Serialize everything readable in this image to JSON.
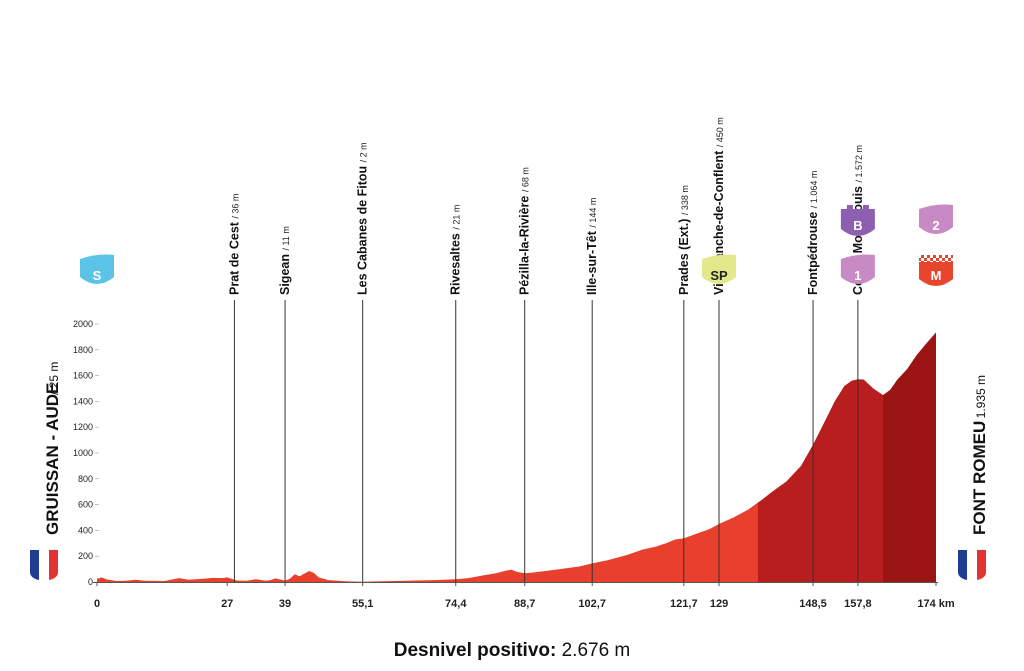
{
  "chart_data": {
    "type": "area",
    "xlim": [
      0,
      174
    ],
    "ylim": [
      0,
      2000
    ],
    "yticks": [
      0,
      200,
      400,
      600,
      800,
      1000,
      1200,
      1400,
      1600,
      1800,
      2000
    ],
    "km_unit": "km",
    "start": {
      "name": "GRUISSAN - AUDE",
      "altitude": "/ 25 m",
      "badge": "S"
    },
    "finish": {
      "name": "FONT ROMEU",
      "altitude": "/ 1.935 m"
    },
    "profile": [
      {
        "x": 0,
        "y": 25
      },
      {
        "x": 1,
        "y": 35
      },
      {
        "x": 2,
        "y": 20
      },
      {
        "x": 4,
        "y": 8
      },
      {
        "x": 6,
        "y": 10
      },
      {
        "x": 8,
        "y": 18
      },
      {
        "x": 10,
        "y": 10
      },
      {
        "x": 14,
        "y": 8
      },
      {
        "x": 17,
        "y": 30
      },
      {
        "x": 19,
        "y": 18
      },
      {
        "x": 22,
        "y": 25
      },
      {
        "x": 24,
        "y": 32
      },
      {
        "x": 26,
        "y": 30
      },
      {
        "x": 27,
        "y": 36
      },
      {
        "x": 29,
        "y": 12
      },
      {
        "x": 31,
        "y": 10
      },
      {
        "x": 33,
        "y": 22
      },
      {
        "x": 35,
        "y": 10
      },
      {
        "x": 36,
        "y": 15
      },
      {
        "x": 37,
        "y": 28
      },
      {
        "x": 39,
        "y": 11
      },
      {
        "x": 40,
        "y": 25
      },
      {
        "x": 41,
        "y": 60
      },
      {
        "x": 42,
        "y": 45
      },
      {
        "x": 44,
        "y": 85
      },
      {
        "x": 45,
        "y": 70
      },
      {
        "x": 46,
        "y": 35
      },
      {
        "x": 48,
        "y": 15
      },
      {
        "x": 50,
        "y": 10
      },
      {
        "x": 52,
        "y": 5
      },
      {
        "x": 55.1,
        "y": 2
      },
      {
        "x": 58,
        "y": 5
      },
      {
        "x": 62,
        "y": 8
      },
      {
        "x": 66,
        "y": 12
      },
      {
        "x": 70,
        "y": 15
      },
      {
        "x": 72,
        "y": 18
      },
      {
        "x": 74.4,
        "y": 21
      },
      {
        "x": 77,
        "y": 30
      },
      {
        "x": 80,
        "y": 50
      },
      {
        "x": 83,
        "y": 70
      },
      {
        "x": 85,
        "y": 90
      },
      {
        "x": 86,
        "y": 95
      },
      {
        "x": 87,
        "y": 80
      },
      {
        "x": 88.7,
        "y": 68
      },
      {
        "x": 90,
        "y": 72
      },
      {
        "x": 93,
        "y": 85
      },
      {
        "x": 96,
        "y": 100
      },
      {
        "x": 100,
        "y": 120
      },
      {
        "x": 102.7,
        "y": 144
      },
      {
        "x": 106,
        "y": 170
      },
      {
        "x": 110,
        "y": 210
      },
      {
        "x": 113,
        "y": 250
      },
      {
        "x": 116,
        "y": 275
      },
      {
        "x": 118,
        "y": 300
      },
      {
        "x": 120,
        "y": 330
      },
      {
        "x": 121.7,
        "y": 338
      },
      {
        "x": 124,
        "y": 370
      },
      {
        "x": 127,
        "y": 410
      },
      {
        "x": 129,
        "y": 450
      },
      {
        "x": 132,
        "y": 500
      },
      {
        "x": 135,
        "y": 560
      },
      {
        "x": 138,
        "y": 640
      },
      {
        "x": 140,
        "y": 700
      },
      {
        "x": 143,
        "y": 780
      },
      {
        "x": 146,
        "y": 900
      },
      {
        "x": 148.5,
        "y": 1064
      },
      {
        "x": 151,
        "y": 1250
      },
      {
        "x": 153,
        "y": 1400
      },
      {
        "x": 155,
        "y": 1520
      },
      {
        "x": 156.5,
        "y": 1560
      },
      {
        "x": 157.8,
        "y": 1572
      },
      {
        "x": 159,
        "y": 1570
      },
      {
        "x": 161,
        "y": 1500
      },
      {
        "x": 163,
        "y": 1450
      },
      {
        "x": 164.5,
        "y": 1490
      },
      {
        "x": 166,
        "y": 1570
      },
      {
        "x": 168,
        "y": 1650
      },
      {
        "x": 170,
        "y": 1760
      },
      {
        "x": 172,
        "y": 1850
      },
      {
        "x": 174,
        "y": 1935
      }
    ],
    "km_marks": [
      {
        "x": 0,
        "label": "0"
      },
      {
        "x": 27,
        "label": "27"
      },
      {
        "x": 39,
        "label": "39"
      },
      {
        "x": 55.1,
        "label": "55,1"
      },
      {
        "x": 74.4,
        "label": "74,4"
      },
      {
        "x": 88.7,
        "label": "88,7"
      },
      {
        "x": 102.7,
        "label": "102,7"
      },
      {
        "x": 121.7,
        "label": "121,7"
      },
      {
        "x": 129,
        "label": "129"
      },
      {
        "x": 148.5,
        "label": "148,5"
      },
      {
        "x": 157.8,
        "label": "157,8"
      },
      {
        "x": 174,
        "label": "174 km"
      }
    ],
    "waypoints": [
      {
        "x": 28.5,
        "name": "Prat de Cest",
        "alt": "/ 36 m",
        "top": 150
      },
      {
        "x": 39,
        "name": "Sigean",
        "alt": "/ 11 m",
        "top": 150
      },
      {
        "x": 55.1,
        "name": "Les Cabanes de Fitou",
        "alt": "/ 2 m",
        "top": 150
      },
      {
        "x": 74.4,
        "name": "Rivesaltes",
        "alt": "/ 21 m",
        "top": 150
      },
      {
        "x": 88.7,
        "name": "Pézilla-la-Rivière",
        "alt": "/ 68 m",
        "top": 150
      },
      {
        "x": 102.7,
        "name": "Ille-sur-Têt",
        "alt": "/ 144 m",
        "top": 150
      },
      {
        "x": 121.7,
        "name": "Prades (Ext.)",
        "alt": "/ 338 m",
        "top": 150
      },
      {
        "x": 129,
        "name": "Villefranche-de-Conflent",
        "alt": "/ 450 m",
        "top": 255
      },
      {
        "x": 148.5,
        "name": "Fontpédrouse",
        "alt": "/ 1.064 m",
        "top": 150
      },
      {
        "x": 157.8,
        "name": "Col de Mont-Louis",
        "alt": "/ 1.572 m",
        "top": 195
      }
    ],
    "badges": [
      {
        "x": 0,
        "text": "S",
        "color": "#5bc3e8",
        "shape": "flag"
      },
      {
        "x": 129,
        "text": "SP",
        "color": "#e3e98a",
        "shape": "flag",
        "text_color": "#222222"
      },
      {
        "x": 157.8,
        "text": "B",
        "color": "#8e5fb0",
        "shape": "tower"
      },
      {
        "x": 157.8,
        "text": "1",
        "color": "#c78ac4",
        "shape": "flag"
      },
      {
        "x": 174,
        "text": "2",
        "color": "#c78ac4",
        "shape": "flag"
      },
      {
        "x": 174,
        "text": "M",
        "color": "#e8462c",
        "shape": "checker"
      }
    ],
    "zones": [
      {
        "from": 0,
        "to": 137,
        "color": "#e8402c"
      },
      {
        "from": 137,
        "to": 163,
        "color": "#b81e1e"
      },
      {
        "from": 163,
        "to": 174,
        "color": "#9a1414"
      }
    ]
  },
  "summary": {
    "label": "Desnivel positivo:",
    "value": "2.676 m"
  }
}
